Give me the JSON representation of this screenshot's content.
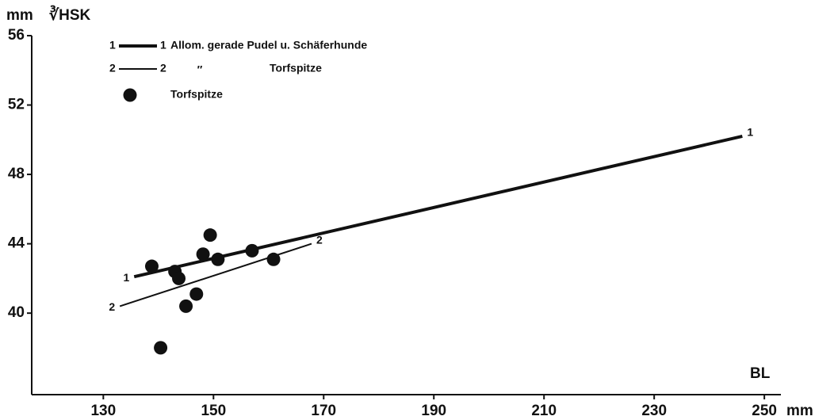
{
  "chart_data": {
    "type": "scatter",
    "ylabel": "∛HSK",
    "yunit": "mm",
    "xlabel": "BL",
    "xunit": "mm",
    "ditto": "″",
    "xlim": [
      117,
      253
    ],
    "xticks": [
      130,
      150,
      170,
      190,
      210,
      230,
      250
    ],
    "ylim": [
      35.3,
      56
    ],
    "yticks": [
      40,
      44,
      48,
      52,
      56
    ],
    "series": [
      {
        "name": "Allom. gerade Pudel u. Schäferhunde",
        "type": "line",
        "label": "1",
        "color": "#111111",
        "linewidth": 4,
        "x": [
          135.6,
          246
        ],
        "values": [
          42.1,
          50.2
        ]
      },
      {
        "name": "Torfspitze",
        "type": "line",
        "label": "2",
        "color": "#111111",
        "linewidth": 2,
        "x": [
          133.0,
          167.8
        ],
        "values": [
          40.4,
          44.0
        ]
      },
      {
        "name": "Torfspitze",
        "type": "scatter",
        "color": "#111111",
        "x": [
          138.8,
          143.0,
          143.7,
          145.0,
          140.4,
          146.9,
          148.1,
          149.4,
          150.8,
          157.0,
          160.9
        ],
        "values": [
          42.7,
          42.4,
          42.0,
          40.4,
          38.0,
          41.1,
          43.4,
          44.5,
          43.1,
          43.6,
          43.1
        ]
      }
    ]
  }
}
